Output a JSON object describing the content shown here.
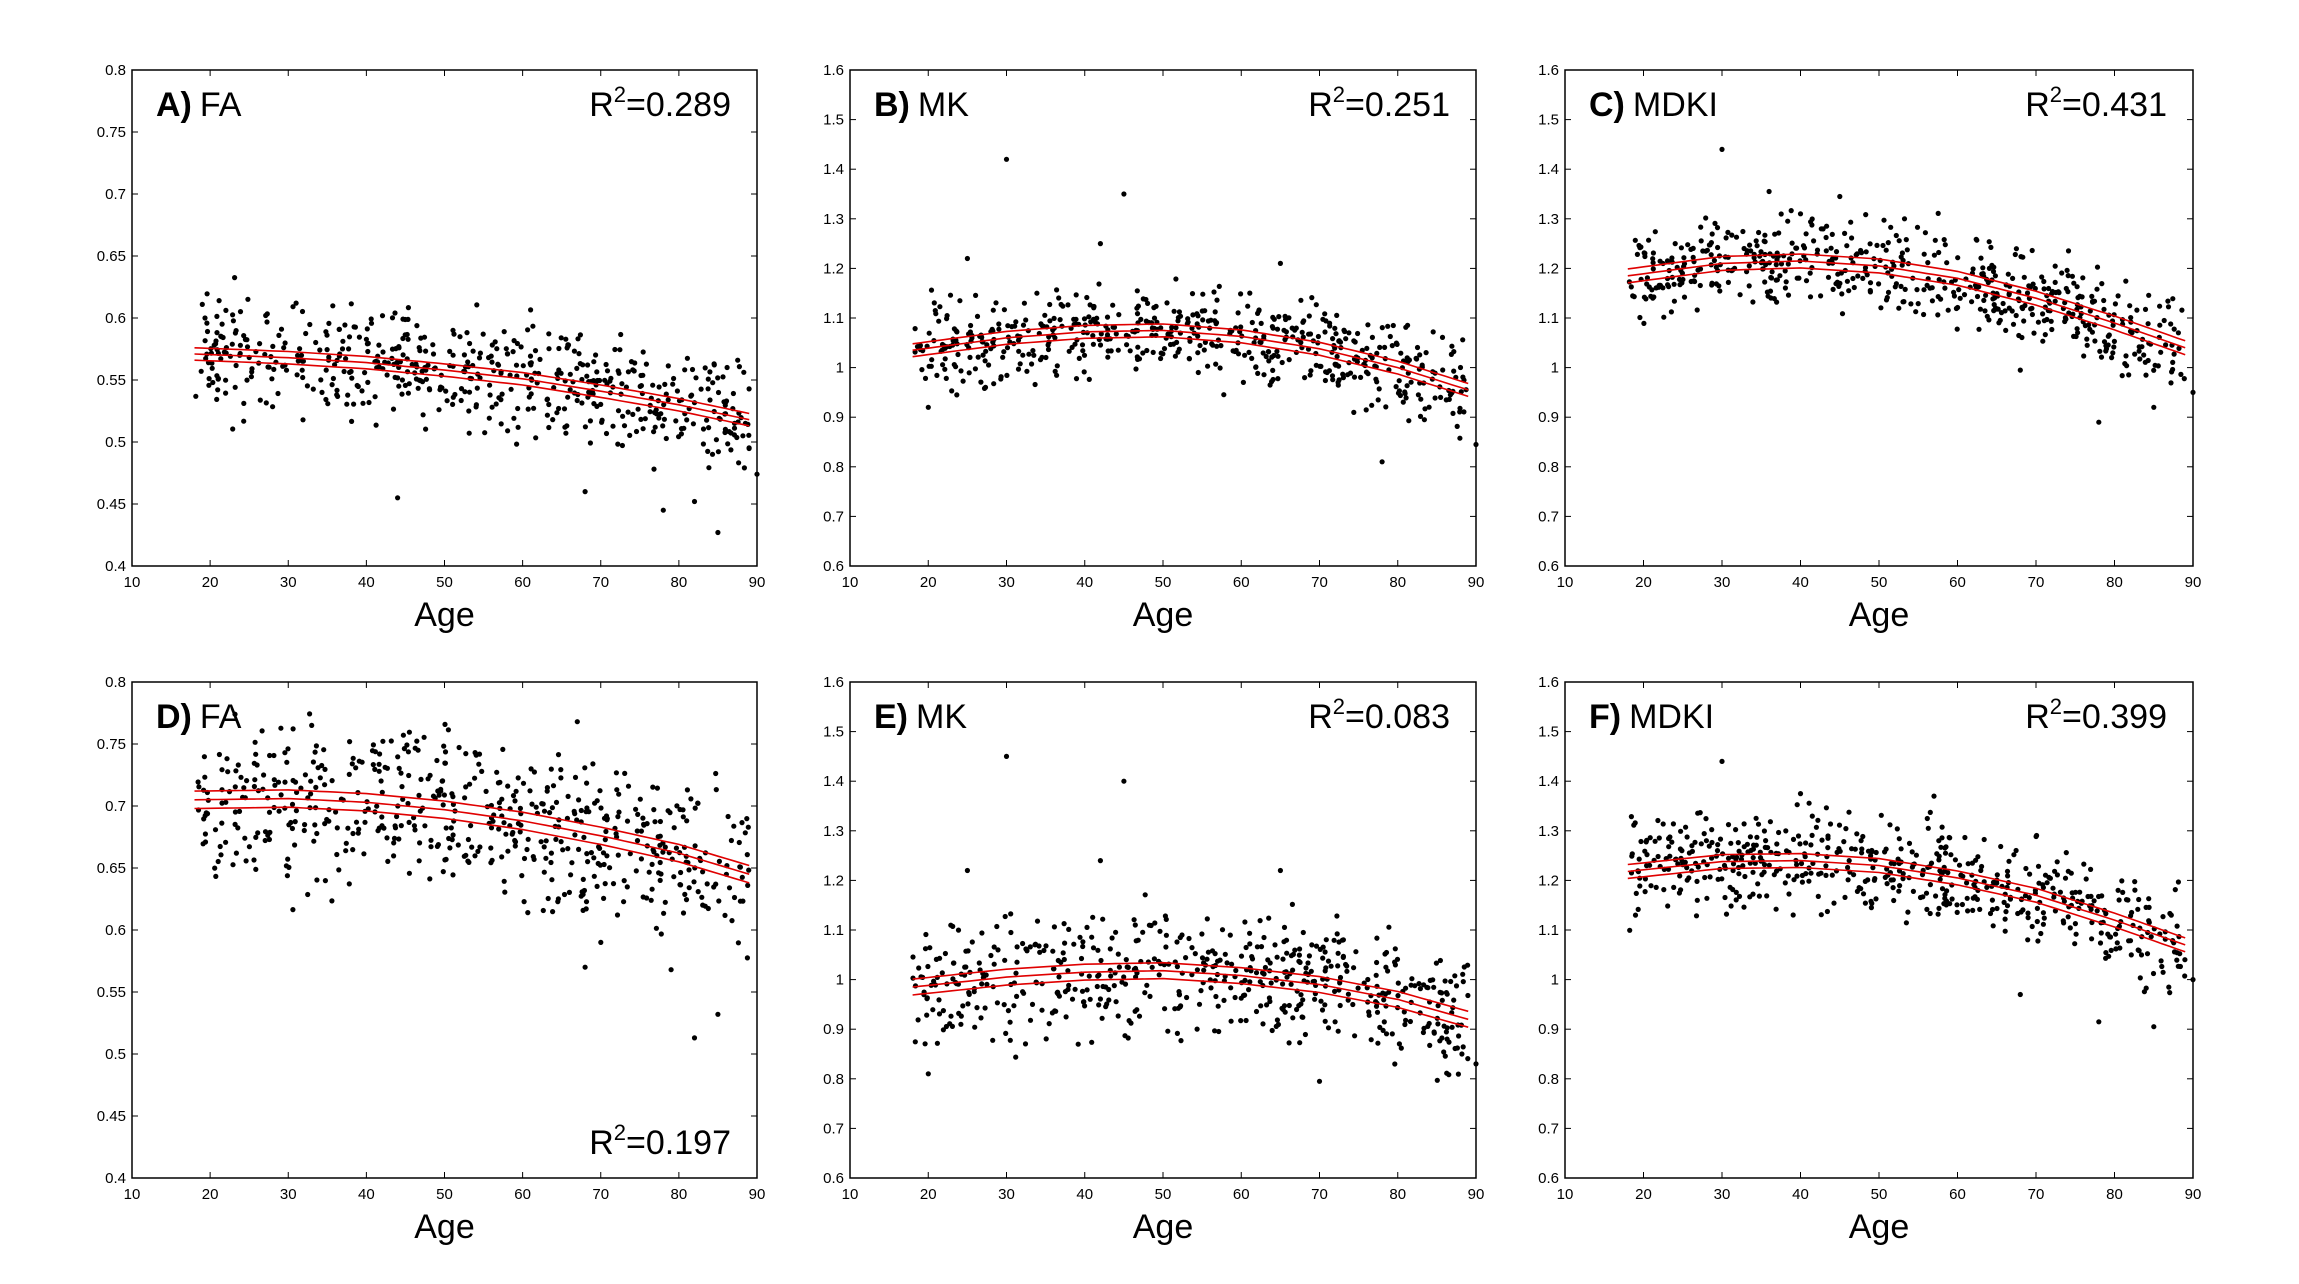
{
  "chart_data": [
    {
      "type": "scatter",
      "letter": "A)",
      "metric": "FA",
      "r2_label": "R",
      "r2_sup": "2",
      "r2_value": "=0.289",
      "r2_pos": "top-right",
      "xlabel": "Age",
      "xlim": [
        10,
        90
      ],
      "xticks": [
        "10",
        "20",
        "30",
        "40",
        "50",
        "60",
        "70",
        "80",
        "90"
      ],
      "ylim": [
        0.4,
        0.8
      ],
      "yticks": [
        "0.4",
        "0.45",
        "0.5",
        "0.55",
        "0.6",
        "0.65",
        "0.7",
        "0.75",
        "0.8"
      ],
      "fit": {
        "x": [
          18,
          30,
          40,
          50,
          60,
          70,
          80,
          89
        ],
        "y": [
          0.571,
          0.568,
          0.564,
          0.558,
          0.551,
          0.541,
          0.53,
          0.518
        ],
        "band": 0.005
      },
      "scatter": {
        "n": 560,
        "seed": 11,
        "noise": 0.022,
        "outliers": [
          [
            44,
            0.455
          ],
          [
            68,
            0.46
          ],
          [
            78,
            0.445
          ],
          [
            82,
            0.452
          ],
          [
            85,
            0.427
          ],
          [
            90,
            0.474
          ],
          [
            31,
            0.612
          ]
        ]
      }
    },
    {
      "type": "scatter",
      "letter": "B)",
      "metric": "MK",
      "r2_label": "R",
      "r2_sup": "2",
      "r2_value": "=0.251",
      "r2_pos": "top-right",
      "xlabel": "Age",
      "xlim": [
        10,
        90
      ],
      "xticks": [
        "10",
        "20",
        "30",
        "40",
        "50",
        "60",
        "70",
        "80",
        "90"
      ],
      "ylim": [
        0.6,
        1.6
      ],
      "yticks": [
        "0.6",
        "0.7",
        "0.8",
        "0.9",
        "1",
        "1.1",
        "1.2",
        "1.3",
        "1.4",
        "1.5",
        "1.6"
      ],
      "fit": {
        "x": [
          18,
          30,
          40,
          50,
          60,
          70,
          80,
          89
        ],
        "y": [
          1.035,
          1.06,
          1.072,
          1.075,
          1.063,
          1.038,
          1.0,
          0.955
        ],
        "band": 0.013
      },
      "scatter": {
        "n": 560,
        "seed": 23,
        "noise": 0.045,
        "outliers": [
          [
            30,
            1.42
          ],
          [
            45,
            1.35
          ],
          [
            42,
            1.25
          ],
          [
            25,
            1.22
          ],
          [
            65,
            1.21
          ],
          [
            78,
            0.81
          ],
          [
            90,
            0.845
          ],
          [
            20,
            0.92
          ]
        ]
      }
    },
    {
      "type": "scatter",
      "letter": "C)",
      "metric": "MDKI",
      "r2_label": "R",
      "r2_sup": "2",
      "r2_value": "=0.431",
      "r2_pos": "top-right",
      "xlabel": "Age",
      "xlim": [
        10,
        90
      ],
      "xticks": [
        "10",
        "20",
        "30",
        "40",
        "50",
        "60",
        "70",
        "80",
        "90"
      ],
      "ylim": [
        0.6,
        1.6
      ],
      "yticks": [
        "0.6",
        "0.7",
        "0.8",
        "0.9",
        "1",
        "1.1",
        "1.2",
        "1.3",
        "1.4",
        "1.5",
        "1.6"
      ],
      "fit": {
        "x": [
          18,
          30,
          40,
          50,
          60,
          70,
          80,
          89
        ],
        "y": [
          1.185,
          1.21,
          1.215,
          1.205,
          1.18,
          1.14,
          1.09,
          1.04
        ],
        "band": 0.014
      },
      "scatter": {
        "n": 560,
        "seed": 37,
        "noise": 0.045,
        "outliers": [
          [
            30,
            1.44
          ],
          [
            36,
            1.355
          ],
          [
            40,
            1.31
          ],
          [
            45,
            1.345
          ],
          [
            78,
            0.89
          ],
          [
            85,
            0.92
          ],
          [
            90,
            0.95
          ],
          [
            68,
            0.995
          ]
        ]
      }
    },
    {
      "type": "scatter",
      "letter": "D)",
      "metric": "FA",
      "r2_label": "R",
      "r2_sup": "2",
      "r2_value": "=0.197",
      "r2_pos": "bottom-right",
      "xlabel": "Age",
      "xlim": [
        10,
        90
      ],
      "xticks": [
        "10",
        "20",
        "30",
        "40",
        "50",
        "60",
        "70",
        "80",
        "90"
      ],
      "ylim": [
        0.4,
        0.8
      ],
      "yticks": [
        "0.4",
        "0.45",
        "0.5",
        "0.55",
        "0.6",
        "0.65",
        "0.7",
        "0.75",
        "0.8"
      ],
      "fit": {
        "x": [
          18,
          30,
          40,
          50,
          60,
          70,
          80,
          89
        ],
        "y": [
          0.705,
          0.706,
          0.703,
          0.697,
          0.688,
          0.676,
          0.662,
          0.645
        ],
        "band": 0.007
      },
      "scatter": {
        "n": 560,
        "seed": 53,
        "noise": 0.032,
        "outliers": [
          [
            68,
            0.57
          ],
          [
            82,
            0.513
          ],
          [
            85,
            0.532
          ],
          [
            70,
            0.59
          ],
          [
            67,
            0.768
          ],
          [
            33,
            0.765
          ],
          [
            79,
            0.568
          ]
        ]
      }
    },
    {
      "type": "scatter",
      "letter": "E)",
      "metric": "MK",
      "r2_label": "R",
      "r2_sup": "2",
      "r2_value": "=0.083",
      "r2_pos": "top-right",
      "xlabel": "Age",
      "xlim": [
        10,
        90
      ],
      "xticks": [
        "10",
        "20",
        "30",
        "40",
        "50",
        "60",
        "70",
        "80",
        "90"
      ],
      "ylim": [
        0.6,
        1.6
      ],
      "yticks": [
        "0.6",
        "0.7",
        "0.8",
        "0.9",
        "1",
        "1.1",
        "1.2",
        "1.3",
        "1.4",
        "1.5",
        "1.6"
      ],
      "fit": {
        "x": [
          18,
          30,
          40,
          50,
          60,
          70,
          80,
          89
        ],
        "y": [
          0.985,
          1.005,
          1.015,
          1.018,
          1.008,
          0.99,
          0.96,
          0.92
        ],
        "band": 0.016
      },
      "scatter": {
        "n": 560,
        "seed": 71,
        "noise": 0.06,
        "outliers": [
          [
            30,
            1.45
          ],
          [
            45,
            1.4
          ],
          [
            42,
            1.24
          ],
          [
            25,
            1.22
          ],
          [
            65,
            1.22
          ],
          [
            20,
            0.81
          ],
          [
            70,
            0.795
          ],
          [
            90,
            0.83
          ]
        ]
      }
    },
    {
      "type": "scatter",
      "letter": "F)",
      "metric": "MDKI",
      "r2_label": "R",
      "r2_sup": "2",
      "r2_value": "=0.399",
      "r2_pos": "top-right",
      "xlabel": "Age",
      "xlim": [
        10,
        90
      ],
      "xticks": [
        "10",
        "20",
        "30",
        "40",
        "50",
        "60",
        "70",
        "80",
        "90"
      ],
      "ylim": [
        0.6,
        1.6
      ],
      "yticks": [
        "0.6",
        "0.7",
        "0.8",
        "0.9",
        "1",
        "1.1",
        "1.2",
        "1.3",
        "1.4",
        "1.5",
        "1.6"
      ],
      "fit": {
        "x": [
          18,
          30,
          40,
          50,
          60,
          70,
          80,
          89
        ],
        "y": [
          1.218,
          1.238,
          1.24,
          1.23,
          1.205,
          1.17,
          1.12,
          1.07
        ],
        "band": 0.014
      },
      "scatter": {
        "n": 560,
        "seed": 89,
        "noise": 0.05,
        "outliers": [
          [
            30,
            1.44
          ],
          [
            40,
            1.375
          ],
          [
            57,
            1.37
          ],
          [
            78,
            0.915
          ],
          [
            85,
            0.905
          ],
          [
            68,
            0.97
          ],
          [
            90,
            1.0
          ]
        ]
      }
    }
  ]
}
